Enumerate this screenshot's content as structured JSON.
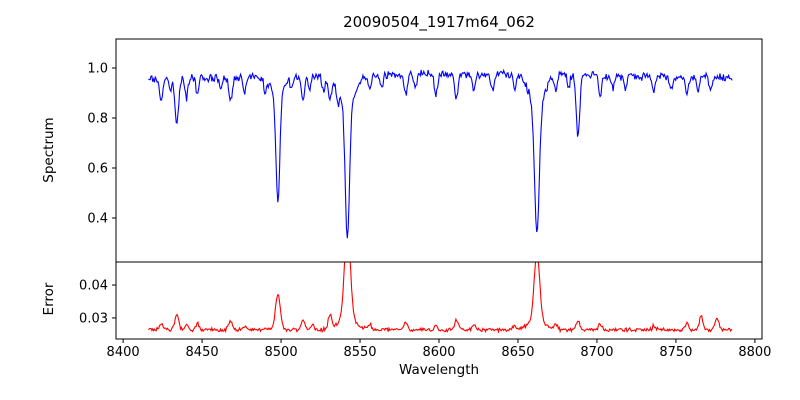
{
  "chart_data": {
    "type": "line",
    "title": "20090504_1917m64_062",
    "xlabel": "Wavelength",
    "x_ticks": [
      8400,
      8450,
      8500,
      8550,
      8600,
      8650,
      8700,
      8750,
      8800
    ],
    "xlim": [
      8395.5,
      8804.5
    ],
    "x_data_range": [
      8416,
      8786
    ],
    "sample_step": 0.55,
    "noise_seed": 20090504,
    "grid": false,
    "legend": "none",
    "subplots": [
      {
        "name": "spectrum",
        "ylabel": "Spectrum",
        "line_color": "#0000ff",
        "y_ticks": [
          "0.4",
          "0.6",
          "0.8",
          "1.0"
        ],
        "ylim": [
          0.224,
          1.116
        ],
        "continuum_base": 0.955,
        "continuum_bump": 0.02,
        "noise_amp": 0.02,
        "flux_max_clip": 1.09,
        "absorption_lines": [
          [
            8424,
            0.09,
            1.0
          ],
          [
            8430,
            0.05,
            0.8
          ],
          [
            8434,
            0.19,
            1.1
          ],
          [
            8440,
            0.08,
            0.9
          ],
          [
            8447,
            0.06,
            0.9
          ],
          [
            8462,
            0.05,
            0.9
          ],
          [
            8468,
            0.1,
            1.1
          ],
          [
            8477,
            0.06,
            0.9
          ],
          [
            8490,
            0.05,
            0.9
          ],
          [
            8498,
            0.42,
            1.2
          ],
          [
            8498,
            0.08,
            4.0
          ],
          [
            8507,
            0.05,
            0.9
          ],
          [
            8514,
            0.1,
            1.0
          ],
          [
            8518,
            0.06,
            0.9
          ],
          [
            8527,
            0.06,
            0.9
          ],
          [
            8531,
            0.09,
            1.0
          ],
          [
            8536,
            0.06,
            1.0
          ],
          [
            8542,
            0.555,
            1.35
          ],
          [
            8542,
            0.11,
            5.0
          ],
          [
            8556,
            0.05,
            0.9
          ],
          [
            8564,
            0.05,
            0.9
          ],
          [
            8579,
            0.08,
            1.0
          ],
          [
            8585,
            0.05,
            0.9
          ],
          [
            8598,
            0.08,
            1.0
          ],
          [
            8611,
            0.09,
            1.0
          ],
          [
            8622,
            0.07,
            1.0
          ],
          [
            8634,
            0.06,
            0.9
          ],
          [
            8648,
            0.06,
            0.9
          ],
          [
            8662,
            0.5,
            1.4
          ],
          [
            8662,
            0.14,
            4.5
          ],
          [
            8674,
            0.06,
            0.9
          ],
          [
            8682,
            0.05,
            0.9
          ],
          [
            8688,
            0.25,
            1.1
          ],
          [
            8702,
            0.09,
            1.0
          ],
          [
            8710,
            0.05,
            0.9
          ],
          [
            8718,
            0.05,
            0.9
          ],
          [
            8736,
            0.06,
            0.9
          ],
          [
            8747,
            0.05,
            0.9
          ],
          [
            8757,
            0.07,
            0.9
          ],
          [
            8764,
            0.06,
            0.9
          ],
          [
            8772,
            0.05,
            0.9
          ]
        ],
        "deep_line_minima": {
          "8498": 0.47,
          "8542": 0.31,
          "8662": 0.33,
          "8688": 0.72
        }
      },
      {
        "name": "error",
        "ylabel": "Error",
        "line_color": "#ff0000",
        "y_ticks": [
          "0.03",
          "0.04"
        ],
        "ylim": [
          0.0236,
          0.047
        ],
        "baseline": 0.0264,
        "noise_amp": 0.0007,
        "peaks": [
          [
            8424,
            0.0015,
            1.2
          ],
          [
            8434,
            0.0045,
            1.3
          ],
          [
            8440,
            0.0015,
            1.0
          ],
          [
            8447,
            0.002,
            1.0
          ],
          [
            8468,
            0.0028,
            1.2
          ],
          [
            8477,
            0.0012,
            1.0
          ],
          [
            8498,
            0.011,
            1.5
          ],
          [
            8514,
            0.003,
            1.2
          ],
          [
            8520,
            0.0015,
            1.0
          ],
          [
            8531,
            0.0042,
            1.2
          ],
          [
            8542,
            0.028,
            1.8
          ],
          [
            8542,
            0.004,
            5.0
          ],
          [
            8556,
            0.0018,
            1.0
          ],
          [
            8579,
            0.0022,
            1.2
          ],
          [
            8598,
            0.0015,
            1.0
          ],
          [
            8611,
            0.0028,
            1.2
          ],
          [
            8622,
            0.0015,
            1.0
          ],
          [
            8648,
            0.0012,
            1.0
          ],
          [
            8662,
            0.0205,
            1.7
          ],
          [
            8662,
            0.003,
            5.0
          ],
          [
            8674,
            0.0015,
            1.0
          ],
          [
            8688,
            0.003,
            1.2
          ],
          [
            8702,
            0.0018,
            1.0
          ],
          [
            8736,
            0.0012,
            1.0
          ],
          [
            8757,
            0.002,
            1.0
          ],
          [
            8766,
            0.0042,
            1.1
          ],
          [
            8776,
            0.004,
            1.1
          ]
        ],
        "clipped_peak_at": 8542
      }
    ]
  }
}
